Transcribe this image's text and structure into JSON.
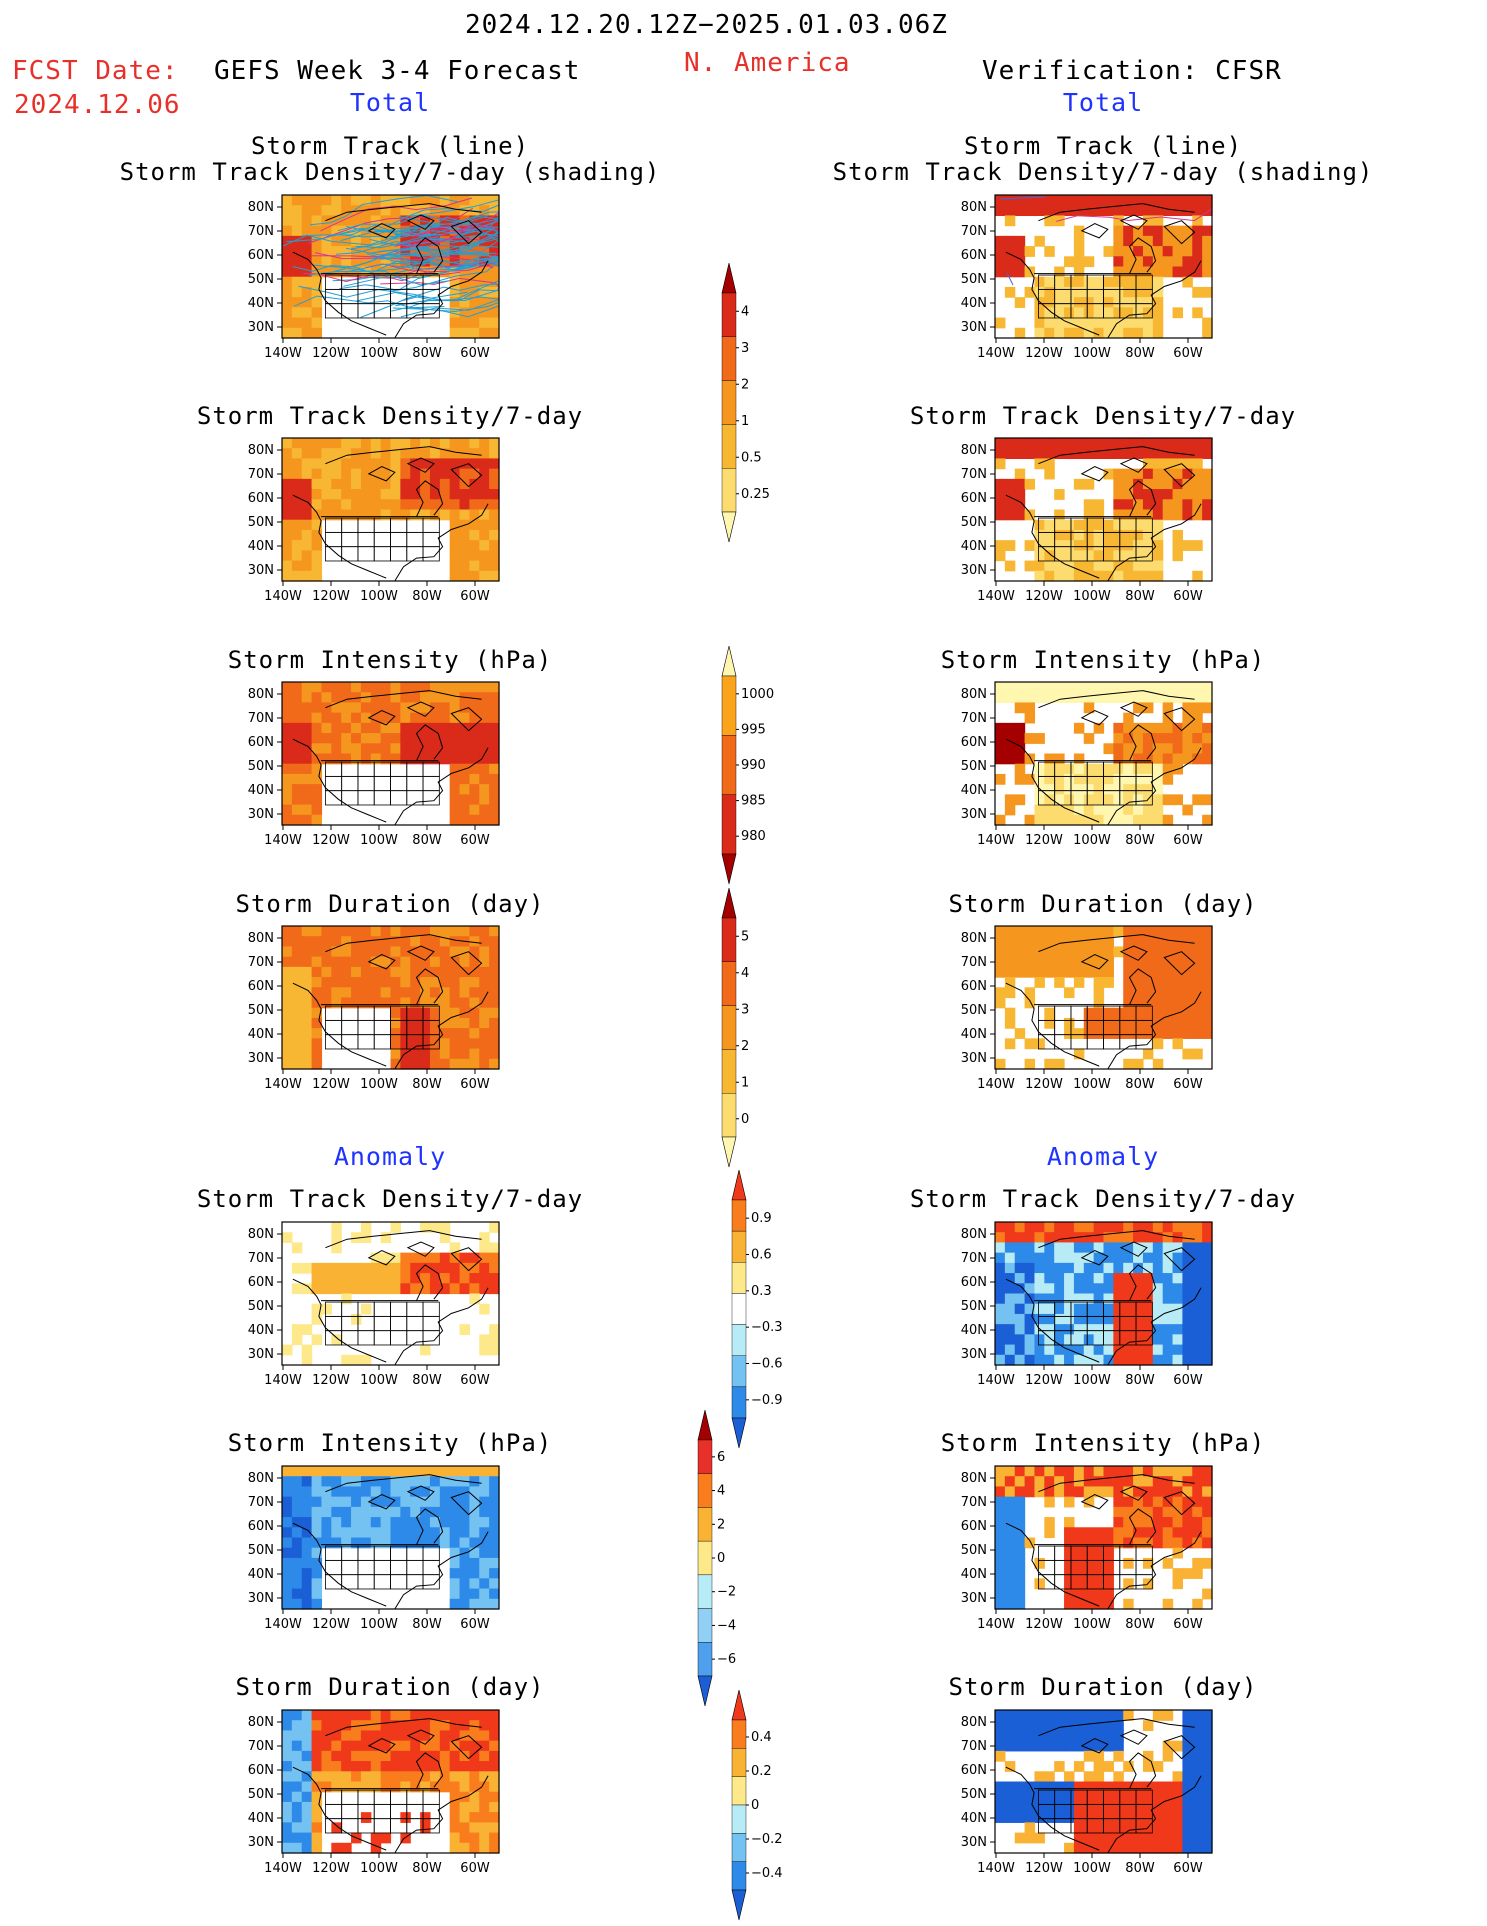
{
  "header": {
    "period": "2024.12.20.12Z−2025.01.03.06Z",
    "region": "N. America",
    "fcst_label": "FCST Date:",
    "fcst_date": "2024.12.06",
    "model": "GEFS Week 3-4 Forecast",
    "verification": "Verification: CFSR"
  },
  "sections": {
    "total": "Total",
    "anomaly": "Anomaly"
  },
  "axes": {
    "lat_ticks": [
      "80N",
      "70N",
      "60N",
      "50N",
      "40N",
      "30N"
    ],
    "lon_ticks": [
      "140W",
      "120W",
      "100W",
      "80W",
      "60W"
    ]
  },
  "panel_titles": {
    "track_line": "Storm Track (line)",
    "track_shading": "Storm Track Density/7-day (shading)",
    "density": "Storm Track Density/7-day",
    "intensity": "Storm Intensity (hPa)",
    "duration": "Storm Duration (day)"
  },
  "colorbars": {
    "density": {
      "labels": [
        "4",
        "3",
        "2",
        "1",
        "0.5",
        "0.25"
      ],
      "colors": [
        "#a50000",
        "#d92a1a",
        "#f06a1a",
        "#f5961e",
        "#f8b733",
        "#fcdc6e",
        "#fff7b0"
      ]
    },
    "intensity": {
      "labels": [
        "1000",
        "995",
        "990",
        "985",
        "980"
      ],
      "colors": [
        "#fff6b0",
        "#f9a41c",
        "#f06a1a",
        "#d92a1a",
        "#a50000"
      ]
    },
    "duration": {
      "labels": [
        "5",
        "4",
        "3",
        "2",
        "1",
        "0"
      ],
      "colors": [
        "#a50000",
        "#d92a1a",
        "#f06a1a",
        "#f5961e",
        "#f8b733",
        "#fcdc6e",
        "#fff7b0"
      ]
    },
    "density_anom": {
      "labels": [
        "0.9",
        "0.6",
        "0.3",
        "−0.3",
        "−0.6",
        "−0.9"
      ],
      "colors": [
        "#f0381a",
        "#f97d1c",
        "#f9b233",
        "#fde98a",
        "#ffffff",
        "#b7ecf7",
        "#74c2f1",
        "#2e8ae8",
        "#1a5fd6"
      ]
    },
    "intensity_anom": {
      "labels": [
        "6",
        "4",
        "2",
        "0",
        "−2",
        "−4",
        "−6"
      ],
      "colors": [
        "#a50000",
        "#e8302a",
        "#f97d1c",
        "#f9b233",
        "#fde98a",
        "#b7ecf7",
        "#8fd0f4",
        "#4fa0ec",
        "#1a5fd6"
      ]
    },
    "duration_anom": {
      "labels": [
        "0.4",
        "0.2",
        "0",
        "−0.2",
        "−0.4"
      ],
      "colors": [
        "#f0381a",
        "#f97d1c",
        "#f9b233",
        "#fde98a",
        "#b7ecf7",
        "#74c2f1",
        "#2e8ae8",
        "#1a5fd6"
      ]
    }
  }
}
